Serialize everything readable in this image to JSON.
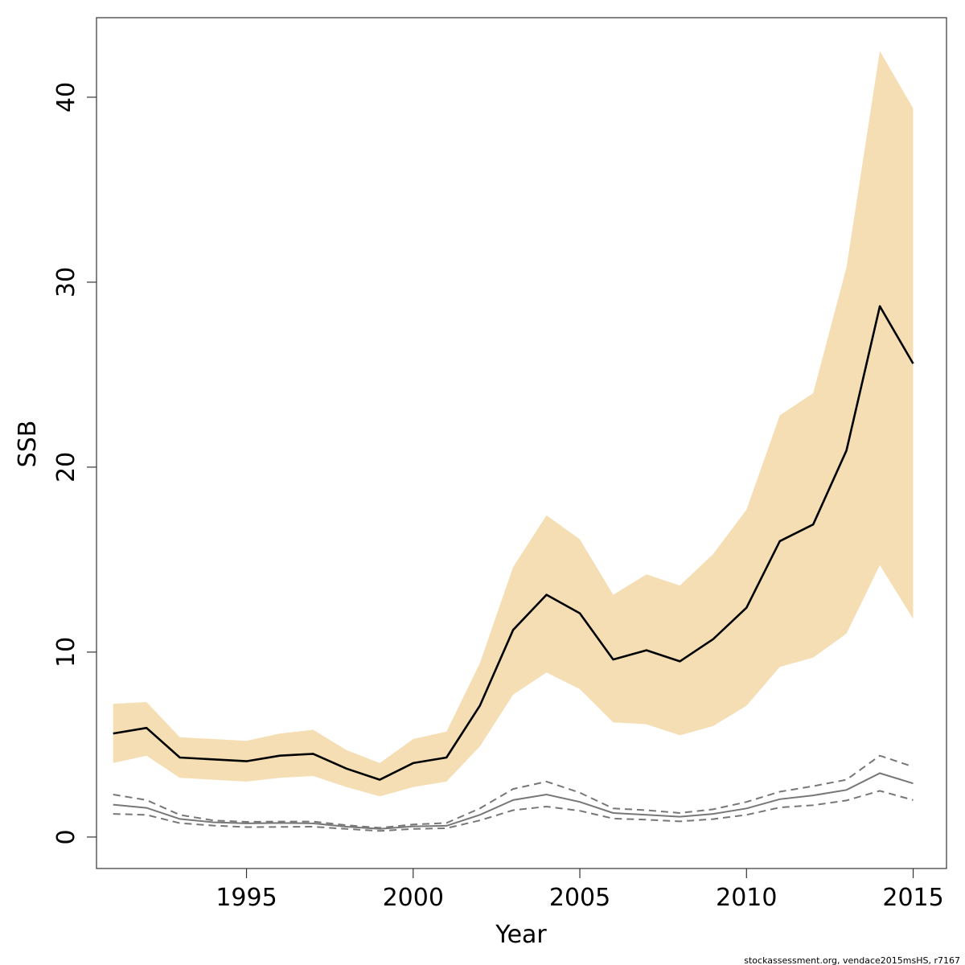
{
  "chart_data": {
    "type": "line",
    "xlabel": "Year",
    "ylabel": "SSB",
    "xlim": [
      1990.5,
      2016
    ],
    "ylim": [
      -1.7,
      44.3
    ],
    "x_ticks": [
      1995,
      2000,
      2005,
      2010,
      2015
    ],
    "y_ticks": [
      0,
      10,
      20,
      30,
      40
    ],
    "grid": false,
    "legend": "none",
    "x": [
      1991,
      1992,
      1993,
      1994,
      1995,
      1996,
      1997,
      1998,
      1999,
      2000,
      2001,
      2002,
      2003,
      2004,
      2005,
      2006,
      2007,
      2008,
      2009,
      2010,
      2011,
      2012,
      2013,
      2014,
      2015
    ],
    "series": [
      {
        "role": "estimate",
        "color": "#000000",
        "values": [
          5.6,
          5.9,
          4.3,
          4.2,
          4.1,
          4.4,
          4.5,
          3.7,
          3.1,
          4.0,
          4.3,
          7.1,
          11.2,
          13.1,
          12.1,
          9.6,
          10.1,
          9.5,
          10.7,
          12.4,
          16.0,
          16.9,
          20.9,
          28.7,
          25.6
        ]
      },
      {
        "role": "upper-band",
        "color": "#f5deb3",
        "values": [
          7.2,
          7.3,
          5.4,
          5.3,
          5.2,
          5.6,
          5.8,
          4.7,
          4.0,
          5.3,
          5.7,
          9.4,
          14.6,
          17.4,
          16.1,
          13.1,
          14.2,
          13.6,
          15.3,
          17.7,
          22.8,
          24.0,
          30.8,
          42.5,
          39.4
        ]
      },
      {
        "role": "lower-band",
        "color": "#f5deb3",
        "values": [
          4.0,
          4.4,
          3.2,
          3.1,
          3.0,
          3.2,
          3.3,
          2.7,
          2.2,
          2.7,
          3.0,
          4.9,
          7.7,
          8.9,
          8.0,
          6.2,
          6.1,
          5.5,
          6.0,
          7.1,
          9.2,
          9.7,
          11.0,
          14.7,
          11.8
        ]
      },
      {
        "role": "secondary",
        "color": "#777777",
        "dash": "solid",
        "values": [
          1.75,
          1.58,
          0.98,
          0.8,
          0.74,
          0.76,
          0.74,
          0.56,
          0.44,
          0.58,
          0.61,
          1.2,
          2.0,
          2.3,
          1.9,
          1.3,
          1.2,
          1.1,
          1.25,
          1.55,
          2.05,
          2.25,
          2.55,
          3.45,
          2.9
        ]
      },
      {
        "role": "secondary-upper",
        "color": "#777777",
        "dash": "dashed",
        "values": [
          2.3,
          2.0,
          1.2,
          0.9,
          0.82,
          0.84,
          0.84,
          0.64,
          0.5,
          0.68,
          0.76,
          1.55,
          2.6,
          3.0,
          2.4,
          1.55,
          1.45,
          1.3,
          1.5,
          1.9,
          2.45,
          2.75,
          3.1,
          4.4,
          3.8
        ]
      },
      {
        "role": "secondary-lower",
        "color": "#777777",
        "dash": "dashed",
        "values": [
          1.25,
          1.2,
          0.75,
          0.62,
          0.54,
          0.55,
          0.56,
          0.44,
          0.33,
          0.44,
          0.48,
          0.9,
          1.45,
          1.65,
          1.42,
          1.0,
          0.94,
          0.85,
          0.97,
          1.2,
          1.6,
          1.72,
          1.98,
          2.5,
          2.0
        ]
      }
    ],
    "footer": "stockassessment.org, vendace2015msHS, r7167"
  }
}
